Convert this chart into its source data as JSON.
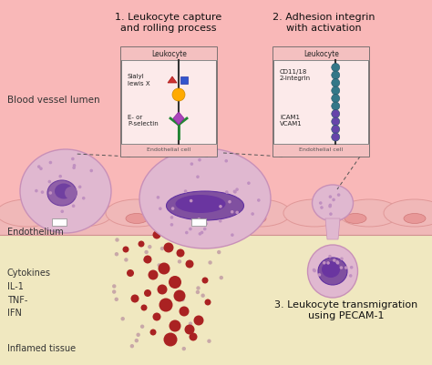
{
  "bg_top_color": "#f9b8b8",
  "bg_bottom_color": "#f0e8c0",
  "endothelium_color": "#f0b0b0",
  "box1_title": "1. Leukocyte capture\nand rolling process",
  "box2_title": "2. Adhesion integrin\nwith activation",
  "box3_title": "3. Leukocyte transmigration\nusing PECAM-1",
  "label_lumen": "Blood vessel lumen",
  "label_endothelium": "Endothelium",
  "label_inflamed": "Inflamed tissue",
  "label_cytokines": "Cytokines\nIL-1\nTNF-\nIFN",
  "box1_leukocyte": "Leukocyte",
  "box1_sialyl": "Sialyl",
  "box1_lewisx": "lewis X",
  "box1_selectin": "E- or\nP-selectin",
  "box1_ec": "Endothelial cell",
  "box2_leukocyte": "Leukocyte",
  "box2_integrin": "CD11/18\n2-integrin",
  "box2_cam": "ICAM1\nVCAM1",
  "box2_ec": "Endothelial cell",
  "cell_outer": "#e0b8d0",
  "cell_inner": "#9060a8",
  "cell_nucleus_dark": "#7040a0",
  "cell_dot": "#b890b8",
  "endo_bump": "#f0b8c0",
  "endo_nuc": "#e89898",
  "blood_red": "#aa2020",
  "cytokine_small": "#c09090"
}
